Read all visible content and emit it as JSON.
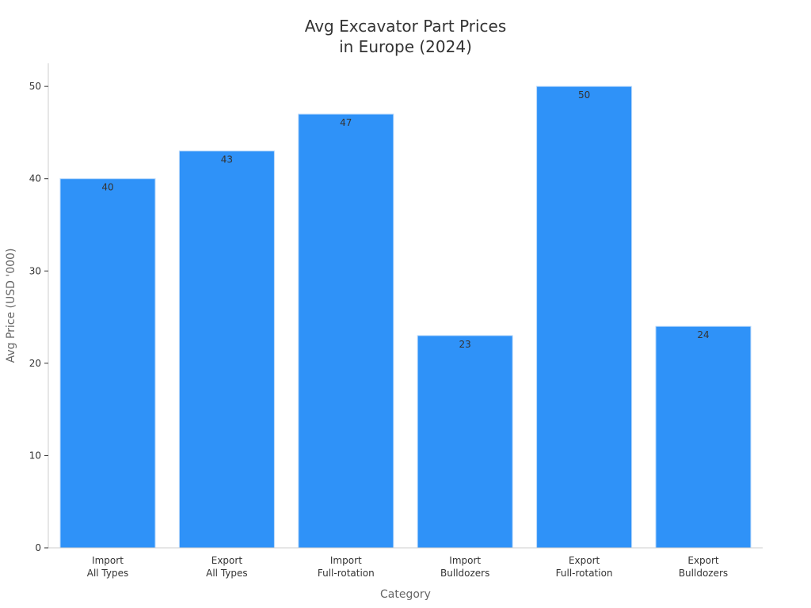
{
  "chart_data": {
    "type": "bar",
    "title_lines": [
      "Avg Excavator Part Prices",
      "in Europe (2024)"
    ],
    "xlabel": "Category",
    "ylabel": "Avg Price (USD '000)",
    "categories": [
      [
        "Import",
        "All Types"
      ],
      [
        "Export",
        "All Types"
      ],
      [
        "Import",
        "Full-rotation"
      ],
      [
        "Import",
        "Bulldozers"
      ],
      [
        "Export",
        "Full-rotation"
      ],
      [
        "Export",
        "Bulldozers"
      ]
    ],
    "values": [
      40,
      43,
      47,
      23,
      50,
      24
    ],
    "value_labels": [
      "40",
      "43",
      "47",
      "23",
      "50",
      "24"
    ],
    "ylim": [
      0,
      52.5
    ],
    "yticks": [
      0,
      10,
      20,
      30,
      40,
      50
    ],
    "grid": false,
    "bar_color": "#2f92f8",
    "bar_edge_color": "#b9d9fb"
  }
}
